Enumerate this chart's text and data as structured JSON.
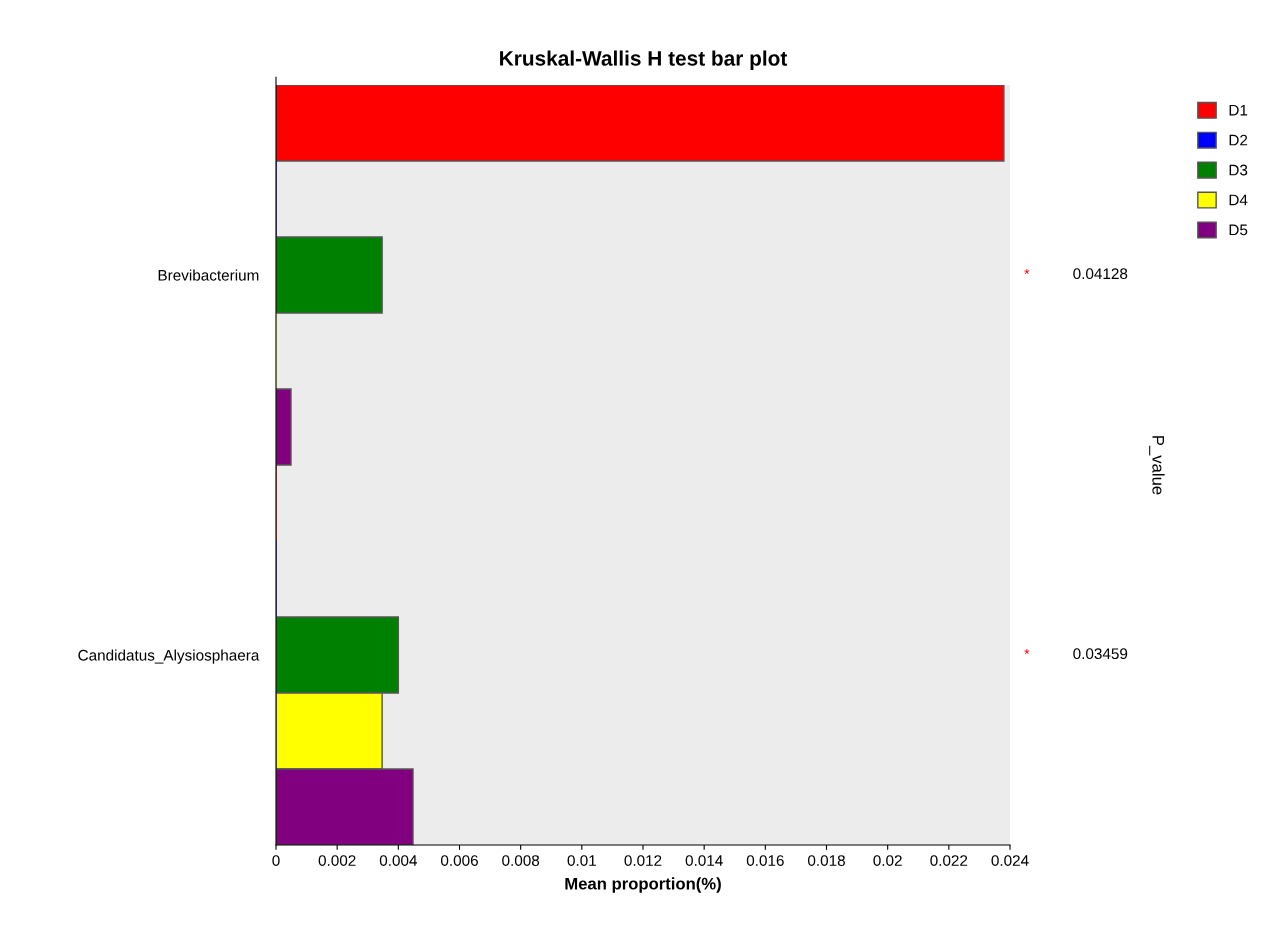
{
  "chart_data": {
    "type": "bar",
    "orientation": "horizontal",
    "title": "Kruskal-Wallis H test bar plot",
    "xlabel": "Mean proportion(%)",
    "categories": [
      "Brevibacterium",
      "Candidatus_Alysiosphaera"
    ],
    "series": [
      {
        "name": "D1",
        "color": "#ff0000",
        "values": [
          0.0238,
          0
        ]
      },
      {
        "name": "D2",
        "color": "#0000ff",
        "values": [
          0,
          0
        ]
      },
      {
        "name": "D3",
        "color": "#008000",
        "values": [
          0.00347,
          0.004
        ]
      },
      {
        "name": "D4",
        "color": "#ffff00",
        "values": [
          0,
          0.00347
        ]
      },
      {
        "name": "D5",
        "color": "#800080",
        "values": [
          0.00049,
          0.00448
        ]
      }
    ],
    "xlim": [
      0,
      0.024
    ],
    "xticks": [
      0,
      0.002,
      0.004,
      0.006,
      0.008,
      0.01,
      0.012,
      0.014,
      0.016,
      0.018,
      0.02,
      0.022,
      0.024
    ],
    "annotations": [
      "*",
      "0.04128",
      "*",
      "0.03459",
      "P_value"
    ],
    "grid": false,
    "legend": "top right"
  }
}
